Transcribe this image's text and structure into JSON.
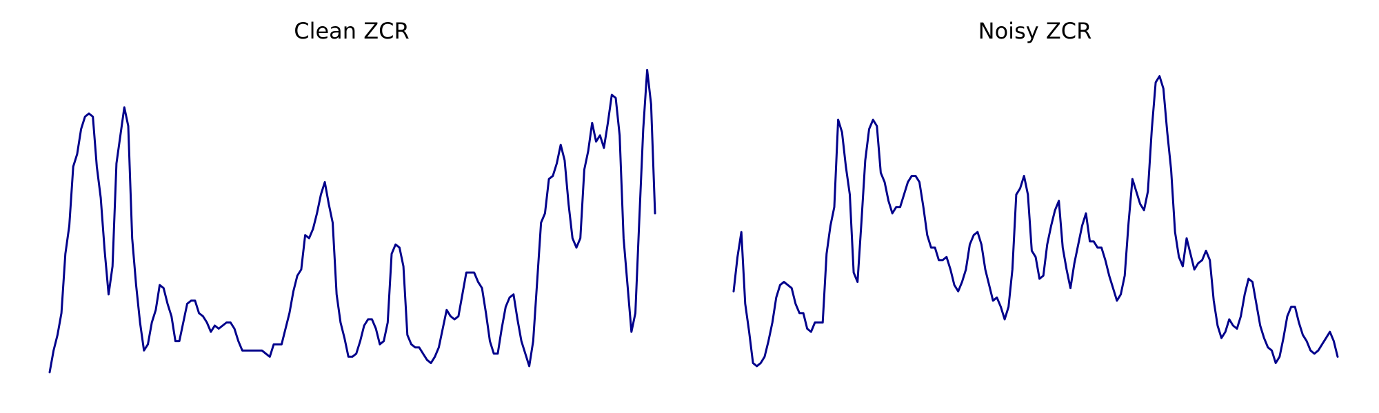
{
  "chart_data": [
    {
      "type": "line",
      "title": "Clean ZCR",
      "xlabel": "",
      "ylabel": "",
      "axes_visible": false,
      "grid": false,
      "ylim": [
        0,
        100
      ],
      "series": [
        {
          "color": "#00008B",
          "y": [
            2,
            9,
            14,
            21,
            40,
            49,
            68,
            72,
            80,
            84,
            85,
            84,
            68,
            58,
            41,
            27,
            36,
            69,
            78,
            87,
            81,
            45,
            30,
            18,
            9,
            11,
            18,
            22,
            30,
            29,
            24,
            20,
            12,
            12,
            18,
            24,
            25,
            25,
            21,
            20,
            18,
            15,
            17,
            16,
            17,
            18,
            18,
            16,
            12,
            9,
            9,
            9,
            9,
            9,
            9,
            8,
            7,
            11,
            11,
            11,
            16,
            21,
            28,
            33,
            35,
            46,
            45,
            48,
            53,
            59,
            63,
            56,
            50,
            27,
            18,
            13,
            7,
            7,
            8,
            12,
            17,
            19,
            19,
            16,
            11,
            12,
            18,
            40,
            43,
            42,
            36,
            14,
            11,
            10,
            10,
            8,
            6,
            5,
            7,
            10,
            16,
            22,
            20,
            19,
            20,
            27,
            34,
            34,
            34,
            31,
            29,
            21,
            12,
            8,
            8,
            16,
            23,
            26,
            27,
            19,
            12,
            8,
            4,
            12,
            31,
            50,
            53,
            64,
            65,
            69,
            75,
            70,
            56,
            45,
            42,
            45,
            67,
            73,
            82,
            76,
            78,
            74,
            82,
            91,
            90,
            78,
            45,
            30,
            15,
            21,
            51,
            80,
            99,
            88,
            53
          ]
        }
      ]
    },
    {
      "type": "line",
      "title": "Noisy ZCR",
      "xlabel": "",
      "ylabel": "",
      "axes_visible": false,
      "grid": false,
      "ylim": [
        0,
        100
      ],
      "series": [
        {
          "color": "#00008B",
          "y": [
            28,
            39,
            47,
            24,
            15,
            5,
            4,
            5,
            7,
            12,
            18,
            26,
            30,
            31,
            30,
            29,
            24,
            21,
            21,
            16,
            15,
            18,
            18,
            18,
            40,
            49,
            55,
            83,
            79,
            68,
            59,
            34,
            31,
            50,
            70,
            80,
            83,
            81,
            66,
            63,
            57,
            53,
            55,
            55,
            59,
            63,
            65,
            65,
            63,
            55,
            46,
            42,
            42,
            38,
            38,
            39,
            35,
            30,
            28,
            31,
            35,
            43,
            46,
            47,
            43,
            35,
            30,
            25,
            26,
            23,
            19,
            23,
            35,
            59,
            61,
            65,
            59,
            41,
            39,
            32,
            33,
            43,
            49,
            54,
            57,
            42,
            35,
            29,
            37,
            43,
            49,
            53,
            44,
            44,
            42,
            42,
            38,
            33,
            29,
            25,
            27,
            33,
            50,
            64,
            60,
            56,
            54,
            60,
            80,
            95,
            97,
            93,
            79,
            67,
            47,
            39,
            36,
            45,
            40,
            35,
            37,
            38,
            41,
            38,
            25,
            17,
            13,
            15,
            19,
            17,
            16,
            20,
            27,
            32,
            31,
            24,
            17,
            13,
            10,
            9,
            5,
            7,
            13,
            20,
            23,
            23,
            18,
            14,
            12,
            9,
            8,
            9,
            11,
            13,
            15,
            12,
            7
          ]
        }
      ]
    }
  ]
}
